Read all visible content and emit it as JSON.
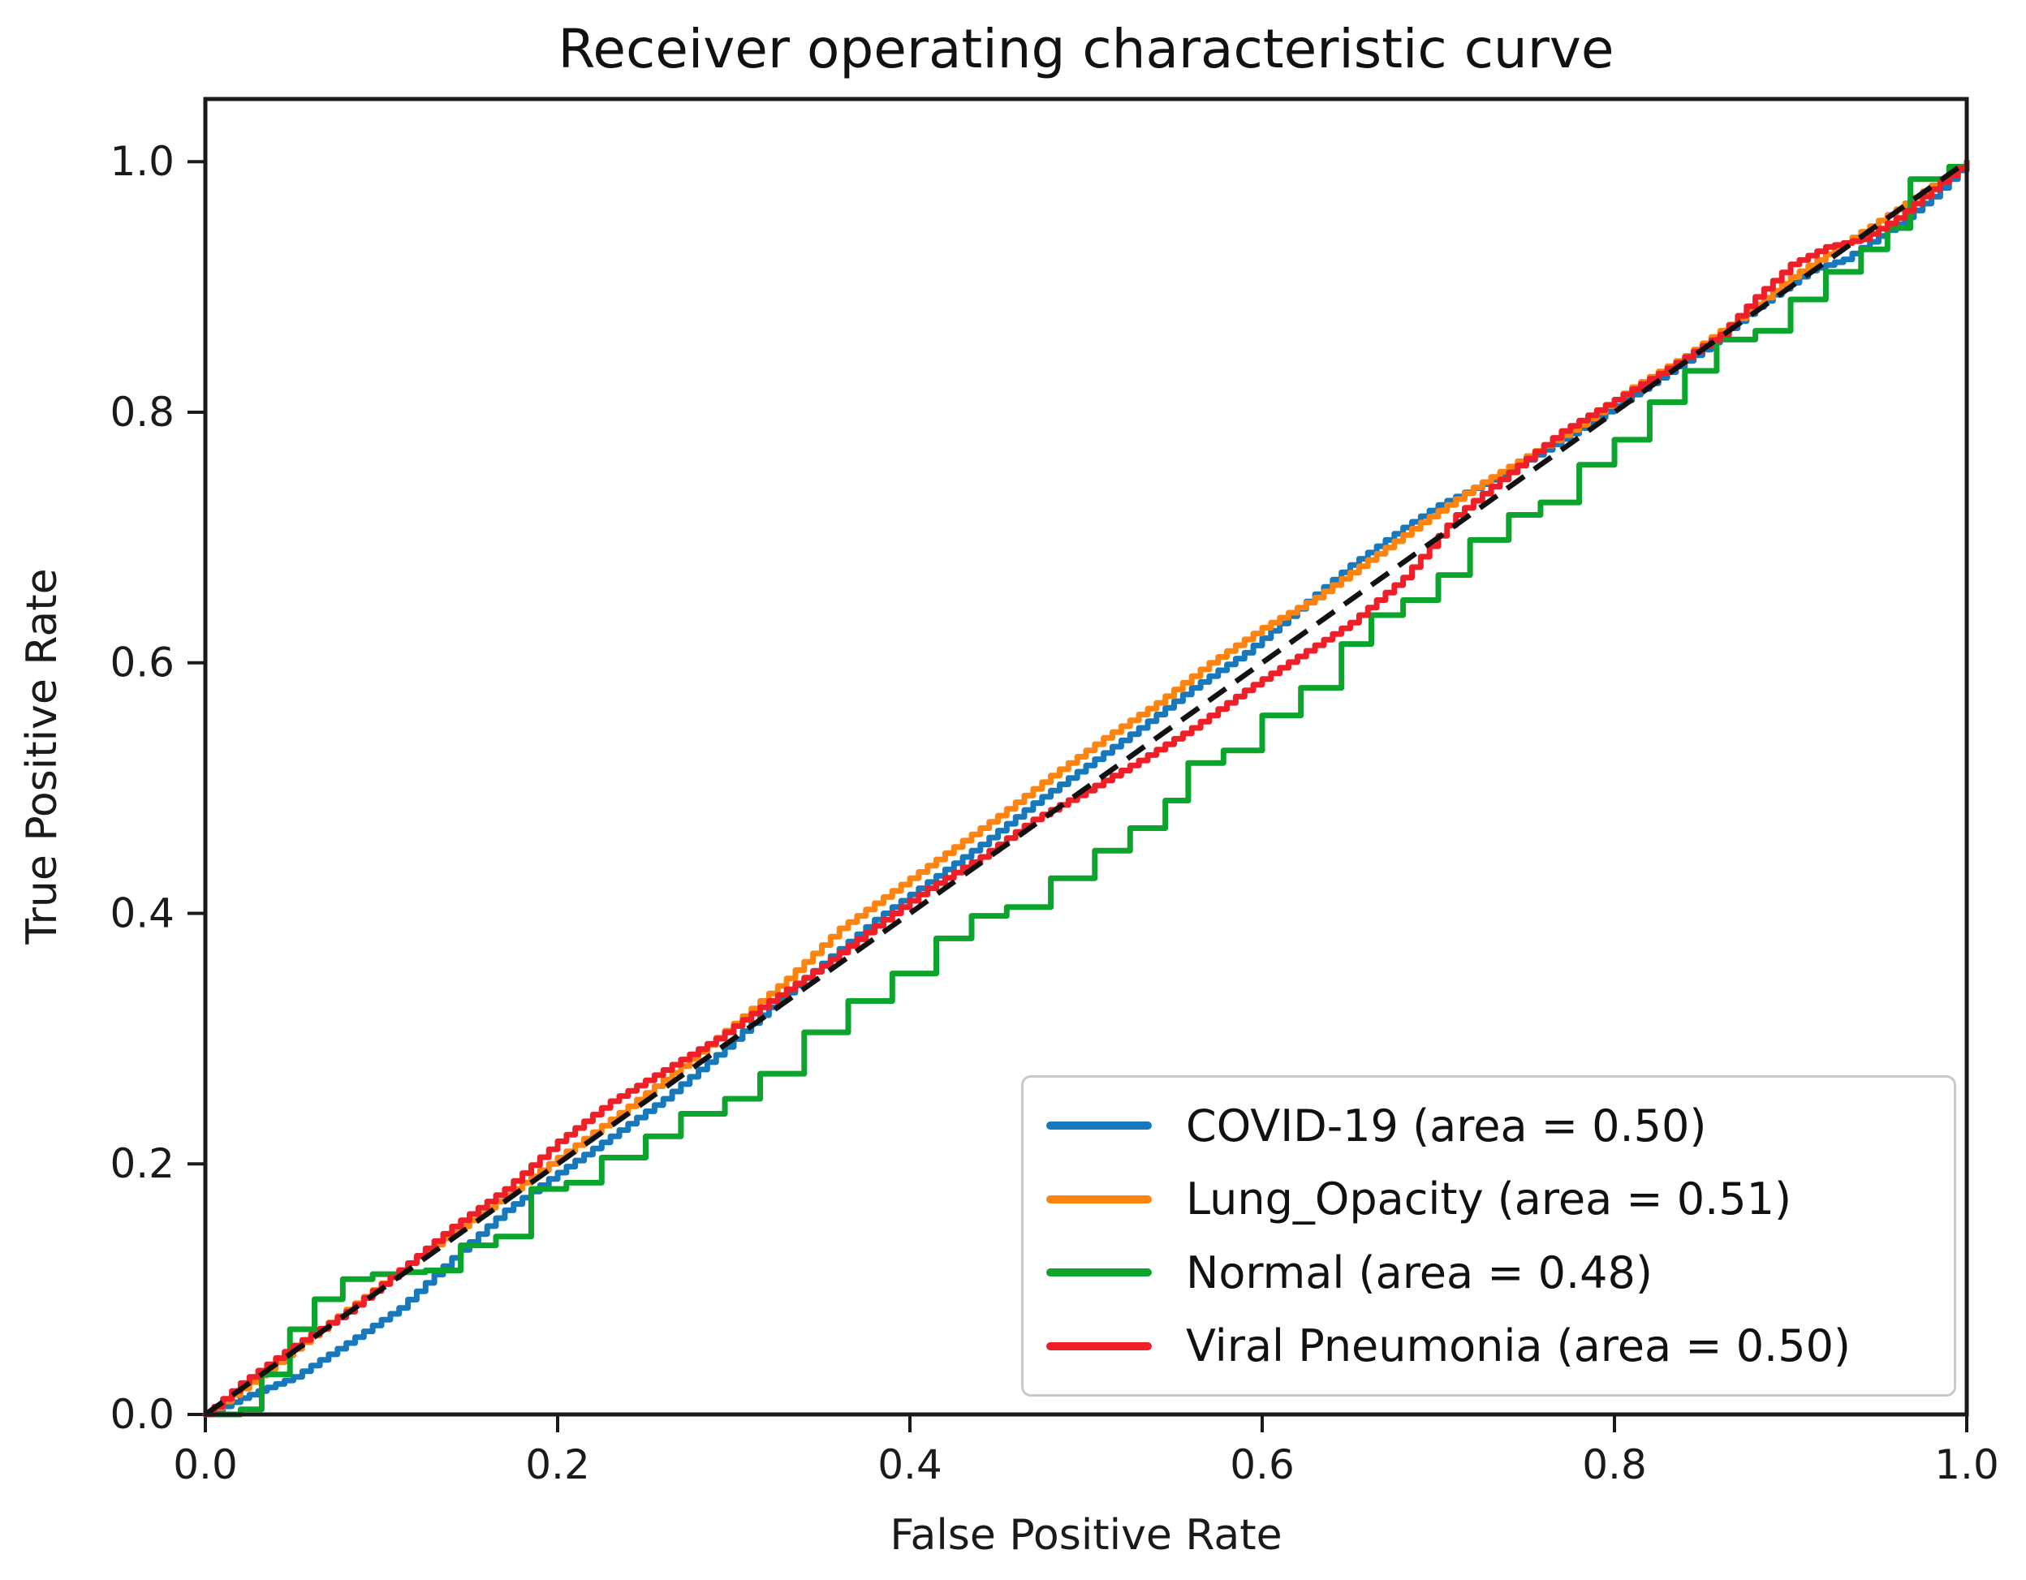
{
  "figure": {
    "title": "Receiver operating characteristic curve"
  },
  "axes": {
    "xlabel": "False Positive Rate",
    "ylabel": "True Positive Rate",
    "x_tick_labels": [
      "0.0",
      "0.2",
      "0.4",
      "0.6",
      "0.8",
      "1.0"
    ],
    "y_tick_labels": [
      "0.0",
      "0.2",
      "0.4",
      "0.6",
      "0.8",
      "1.0"
    ],
    "xlim": [
      0.0,
      1.0
    ],
    "ylim": [
      0.0,
      1.05
    ]
  },
  "legend": {
    "position": "lower right",
    "items": [
      {
        "label": "COVID-19 (area = 0.50)",
        "color": "#1779bb"
      },
      {
        "label": "Lung_Opacity (area = 0.51)",
        "color": "#fe830f"
      },
      {
        "label": "Normal (area = 0.48)",
        "color": "#0ba42c"
      },
      {
        "label": "Viral Pneumonia (area = 0.50)",
        "color": "#ee1f27"
      }
    ]
  },
  "chart_data": {
    "type": "line",
    "title": "Receiver operating characteristic curve",
    "xlabel": "False Positive Rate",
    "ylabel": "True Positive Rate",
    "xlim": [
      0.0,
      1.0
    ],
    "ylim": [
      0.0,
      1.05
    ],
    "grid": false,
    "legend_position": "lower right",
    "reference_line": {
      "name": "chance-diagonal",
      "style": "dashed",
      "color": "#111111",
      "points": [
        [
          0.0,
          0.0
        ],
        [
          1.0,
          1.0
        ]
      ]
    },
    "series": [
      {
        "name": "COVID-19",
        "auc": 0.5,
        "color": "#1779bb",
        "points": [
          [
            0.0,
            0.0
          ],
          [
            0.02,
            0.013
          ],
          [
            0.05,
            0.03
          ],
          [
            0.08,
            0.057
          ],
          [
            0.11,
            0.085
          ],
          [
            0.14,
            0.125
          ],
          [
            0.17,
            0.163
          ],
          [
            0.2,
            0.193
          ],
          [
            0.23,
            0.222
          ],
          [
            0.26,
            0.252
          ],
          [
            0.29,
            0.287
          ],
          [
            0.32,
            0.325
          ],
          [
            0.35,
            0.36
          ],
          [
            0.38,
            0.395
          ],
          [
            0.41,
            0.425
          ],
          [
            0.44,
            0.455
          ],
          [
            0.47,
            0.488
          ],
          [
            0.5,
            0.518
          ],
          [
            0.53,
            0.548
          ],
          [
            0.56,
            0.58
          ],
          [
            0.59,
            0.608
          ],
          [
            0.62,
            0.643
          ],
          [
            0.65,
            0.678
          ],
          [
            0.68,
            0.708
          ],
          [
            0.7,
            0.726
          ],
          [
            0.73,
            0.746
          ],
          [
            0.76,
            0.77
          ],
          [
            0.79,
            0.796
          ],
          [
            0.82,
            0.823
          ],
          [
            0.85,
            0.85
          ],
          [
            0.88,
            0.884
          ],
          [
            0.91,
            0.913
          ],
          [
            0.93,
            0.922
          ],
          [
            0.96,
            0.95
          ],
          [
            0.98,
            0.972
          ],
          [
            1.0,
            1.0
          ]
        ]
      },
      {
        "name": "Lung_Opacity",
        "auc": 0.51,
        "color": "#fe830f",
        "points": [
          [
            0.0,
            0.0
          ],
          [
            0.03,
            0.031
          ],
          [
            0.06,
            0.063
          ],
          [
            0.09,
            0.094
          ],
          [
            0.12,
            0.126
          ],
          [
            0.15,
            0.155
          ],
          [
            0.18,
            0.185
          ],
          [
            0.21,
            0.215
          ],
          [
            0.24,
            0.246
          ],
          [
            0.27,
            0.278
          ],
          [
            0.3,
            0.312
          ],
          [
            0.33,
            0.348
          ],
          [
            0.36,
            0.388
          ],
          [
            0.39,
            0.418
          ],
          [
            0.42,
            0.448
          ],
          [
            0.45,
            0.478
          ],
          [
            0.48,
            0.51
          ],
          [
            0.51,
            0.54
          ],
          [
            0.54,
            0.568
          ],
          [
            0.57,
            0.6
          ],
          [
            0.6,
            0.628
          ],
          [
            0.63,
            0.652
          ],
          [
            0.66,
            0.682
          ],
          [
            0.69,
            0.712
          ],
          [
            0.72,
            0.74
          ],
          [
            0.75,
            0.765
          ],
          [
            0.78,
            0.79
          ],
          [
            0.81,
            0.82
          ],
          [
            0.84,
            0.845
          ],
          [
            0.87,
            0.875
          ],
          [
            0.9,
            0.908
          ],
          [
            0.93,
            0.935
          ],
          [
            0.96,
            0.962
          ],
          [
            1.0,
            1.0
          ]
        ]
      },
      {
        "name": "Normal",
        "auc": 0.48,
        "color": "#0ba42c",
        "points": [
          [
            0.0,
            0.0
          ],
          [
            0.02,
            0.004
          ],
          [
            0.032,
            0.032
          ],
          [
            0.048,
            0.068
          ],
          [
            0.062,
            0.092
          ],
          [
            0.078,
            0.108
          ],
          [
            0.095,
            0.112
          ],
          [
            0.125,
            0.115
          ],
          [
            0.145,
            0.135
          ],
          [
            0.165,
            0.142
          ],
          [
            0.185,
            0.18
          ],
          [
            0.205,
            0.185
          ],
          [
            0.225,
            0.205
          ],
          [
            0.25,
            0.222
          ],
          [
            0.27,
            0.24
          ],
          [
            0.295,
            0.252
          ],
          [
            0.315,
            0.272
          ],
          [
            0.34,
            0.305
          ],
          [
            0.365,
            0.33
          ],
          [
            0.39,
            0.352
          ],
          [
            0.415,
            0.38
          ],
          [
            0.435,
            0.398
          ],
          [
            0.455,
            0.405
          ],
          [
            0.48,
            0.428
          ],
          [
            0.505,
            0.45
          ],
          [
            0.525,
            0.468
          ],
          [
            0.545,
            0.49
          ],
          [
            0.558,
            0.52
          ],
          [
            0.578,
            0.53
          ],
          [
            0.6,
            0.558
          ],
          [
            0.622,
            0.58
          ],
          [
            0.645,
            0.615
          ],
          [
            0.662,
            0.638
          ],
          [
            0.68,
            0.65
          ],
          [
            0.7,
            0.67
          ],
          [
            0.718,
            0.698
          ],
          [
            0.74,
            0.718
          ],
          [
            0.758,
            0.728
          ],
          [
            0.78,
            0.758
          ],
          [
            0.8,
            0.778
          ],
          [
            0.82,
            0.808
          ],
          [
            0.84,
            0.833
          ],
          [
            0.858,
            0.858
          ],
          [
            0.88,
            0.865
          ],
          [
            0.9,
            0.89
          ],
          [
            0.92,
            0.912
          ],
          [
            0.94,
            0.93
          ],
          [
            0.955,
            0.947
          ],
          [
            0.968,
            0.986
          ],
          [
            0.99,
            0.996
          ],
          [
            1.0,
            1.0
          ]
        ]
      },
      {
        "name": "Viral Pneumonia",
        "auc": 0.5,
        "color": "#ee1f27",
        "points": [
          [
            0.0,
            0.0
          ],
          [
            0.02,
            0.025
          ],
          [
            0.05,
            0.055
          ],
          [
            0.08,
            0.082
          ],
          [
            0.11,
            0.115
          ],
          [
            0.14,
            0.15
          ],
          [
            0.17,
            0.18
          ],
          [
            0.2,
            0.218
          ],
          [
            0.23,
            0.25
          ],
          [
            0.26,
            0.275
          ],
          [
            0.29,
            0.3
          ],
          [
            0.32,
            0.33
          ],
          [
            0.35,
            0.358
          ],
          [
            0.38,
            0.39
          ],
          [
            0.41,
            0.42
          ],
          [
            0.44,
            0.445
          ],
          [
            0.47,
            0.475
          ],
          [
            0.5,
            0.498
          ],
          [
            0.53,
            0.522
          ],
          [
            0.56,
            0.548
          ],
          [
            0.59,
            0.578
          ],
          [
            0.62,
            0.605
          ],
          [
            0.65,
            0.632
          ],
          [
            0.68,
            0.668
          ],
          [
            0.71,
            0.718
          ],
          [
            0.74,
            0.752
          ],
          [
            0.77,
            0.785
          ],
          [
            0.8,
            0.81
          ],
          [
            0.83,
            0.835
          ],
          [
            0.86,
            0.862
          ],
          [
            0.88,
            0.892
          ],
          [
            0.9,
            0.918
          ],
          [
            0.92,
            0.932
          ],
          [
            0.94,
            0.938
          ],
          [
            0.96,
            0.955
          ],
          [
            0.98,
            0.978
          ],
          [
            1.0,
            1.0
          ]
        ]
      }
    ]
  }
}
